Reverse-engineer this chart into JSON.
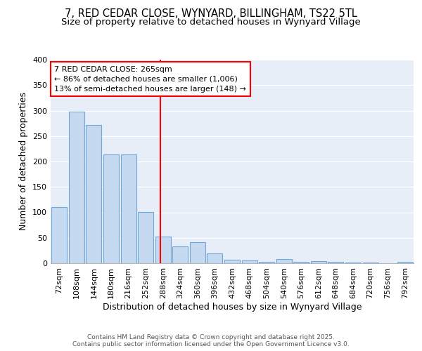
{
  "title": "7, RED CEDAR CLOSE, WYNYARD, BILLINGHAM, TS22 5TL",
  "subtitle": "Size of property relative to detached houses in Wynyard Village",
  "xlabel": "Distribution of detached houses by size in Wynyard Village",
  "ylabel": "Number of detached properties",
  "categories": [
    "72sqm",
    "108sqm",
    "144sqm",
    "180sqm",
    "216sqm",
    "252sqm",
    "288sqm",
    "324sqm",
    "360sqm",
    "396sqm",
    "432sqm",
    "468sqm",
    "504sqm",
    "540sqm",
    "576sqm",
    "612sqm",
    "648sqm",
    "684sqm",
    "720sqm",
    "756sqm",
    "792sqm"
  ],
  "values": [
    110,
    298,
    272,
    214,
    214,
    101,
    52,
    33,
    42,
    20,
    7,
    5,
    3,
    8,
    3,
    4,
    3,
    2,
    1,
    0,
    3
  ],
  "bar_color": "#c5d9f0",
  "bar_edge_color": "#6fa8d6",
  "vline_color": "red",
  "annotation_text": "7 RED CEDAR CLOSE: 265sqm\n← 86% of detached houses are smaller (1,006)\n13% of semi-detached houses are larger (148) →",
  "annotation_box_color": "white",
  "annotation_box_edge": "red",
  "ylim": [
    0,
    400
  ],
  "yticks": [
    0,
    50,
    100,
    150,
    200,
    250,
    300,
    350,
    400
  ],
  "bg_color": "#ffffff",
  "plot_bg_color": "#e8eef8",
  "grid_color": "#ffffff",
  "footer_text": "Contains HM Land Registry data © Crown copyright and database right 2025.\nContains public sector information licensed under the Open Government Licence v3.0.",
  "title_fontsize": 10.5,
  "subtitle_fontsize": 9.5,
  "xlabel_fontsize": 9,
  "ylabel_fontsize": 9,
  "tick_fontsize": 8,
  "annot_fontsize": 8,
  "footer_fontsize": 6.5
}
